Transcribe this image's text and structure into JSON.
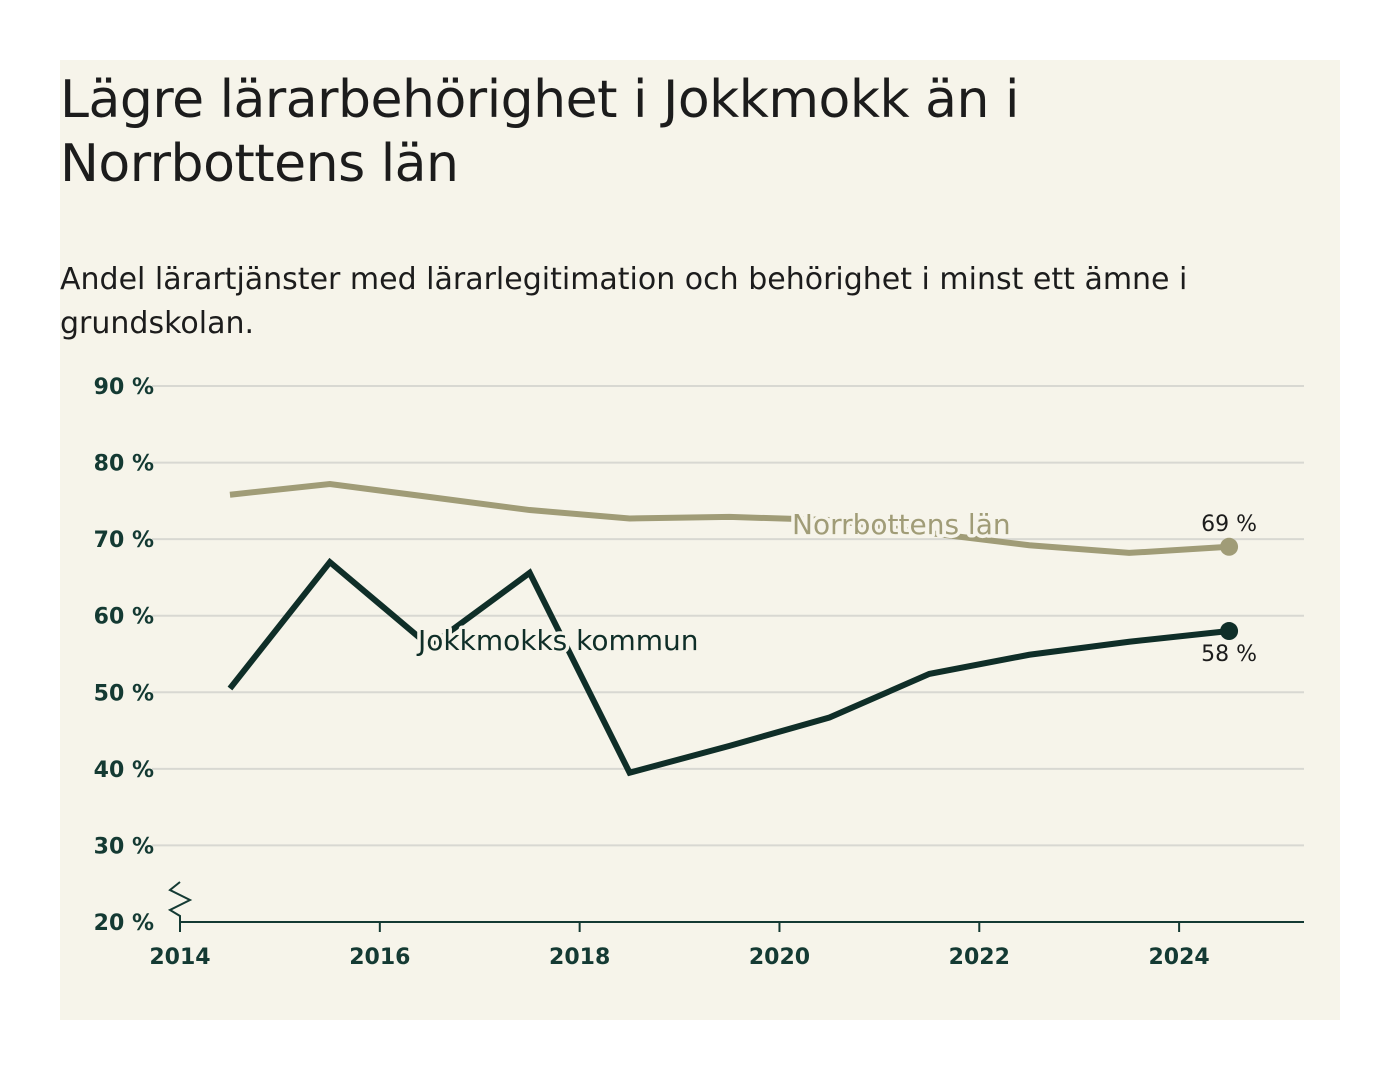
{
  "chart_data": {
    "type": "line",
    "title": "Lägre lärarbehörighet i Jokkmokk än i Norrbottens län",
    "subtitle": "Andel lärartjänster med lärarlegitimation och behörighet i minst ett ämne i grundskolan.",
    "x": [
      2015,
      2016,
      2017,
      2018,
      2019,
      2020,
      2021,
      2022,
      2023,
      2024,
      2025
    ],
    "x_ticks": [
      "2014",
      "2016",
      "2018",
      "2020",
      "2022",
      "2024"
    ],
    "y_ticks": [
      "20 %",
      "30 %",
      "40 %",
      "50 %",
      "60 %",
      "70 %",
      "80 %",
      "90 %"
    ],
    "ylim": [
      20,
      90
    ],
    "y_axis_break": true,
    "grid": true,
    "series": [
      {
        "name": "Norrbottens län",
        "color": "#a09c77",
        "values": [
          75.8,
          77.2,
          75.5,
          73.8,
          72.7,
          72.9,
          72.5,
          70.8,
          69.2,
          68.2,
          69.0
        ],
        "end_label": "69 %"
      },
      {
        "name": "Jokkmokks kommun",
        "color": "#0f2e28",
        "values": [
          50.5,
          67.0,
          56.0,
          65.6,
          39.5,
          43.0,
          46.7,
          52.4,
          54.9,
          56.6,
          58.0
        ],
        "end_label": "58 %"
      }
    ]
  }
}
